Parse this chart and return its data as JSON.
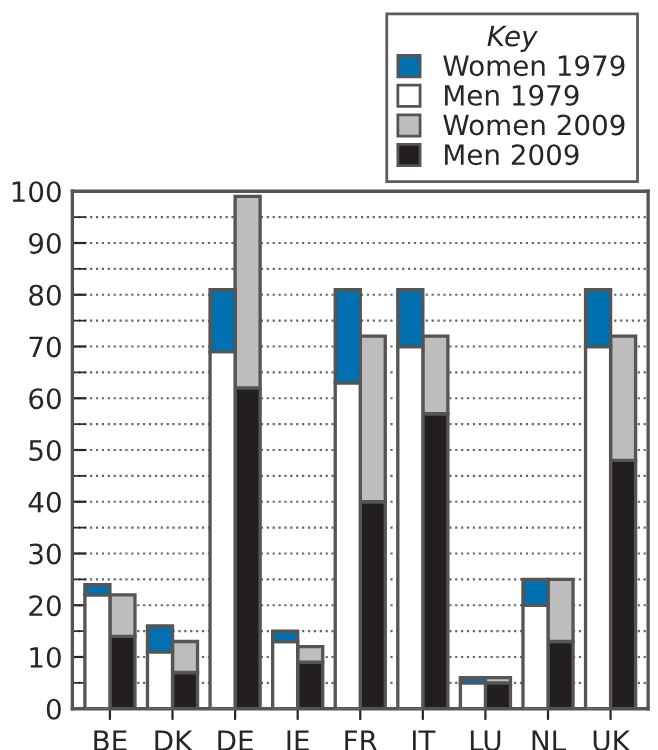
{
  "chart_data": {
    "type": "bar",
    "legend_title": "Key",
    "legend": "top right",
    "grid": "y",
    "categories": [
      "BE",
      "DK",
      "DE",
      "IE",
      "FR",
      "IT",
      "LU",
      "NL",
      "UK"
    ],
    "series": [
      {
        "name": "Women 1979",
        "color": "#0070b0",
        "values": [
          2,
          5,
          12,
          2,
          18,
          11,
          1,
          5,
          11
        ],
        "base": [
          22,
          11,
          69,
          13,
          63,
          70,
          5,
          20,
          70
        ]
      },
      {
        "name": "Men 1979",
        "color": "#ffffff",
        "values": [
          22,
          11,
          69,
          13,
          63,
          70,
          5,
          20,
          70
        ]
      },
      {
        "name": "Women 2009",
        "color": "#bdbdbd",
        "values": [
          8,
          6,
          37,
          3,
          32,
          15,
          1,
          12,
          24
        ],
        "base": [
          14,
          7,
          62,
          9,
          40,
          57,
          5,
          13,
          48
        ]
      },
      {
        "name": "Men 2009",
        "color": "#231f20",
        "values": [
          14,
          7,
          62,
          9,
          40,
          57,
          5,
          13,
          48
        ]
      }
    ],
    "ylim": [
      0,
      100
    ],
    "yticks": [
      0,
      10,
      20,
      30,
      40,
      50,
      60,
      70,
      80,
      90,
      100
    ]
  }
}
